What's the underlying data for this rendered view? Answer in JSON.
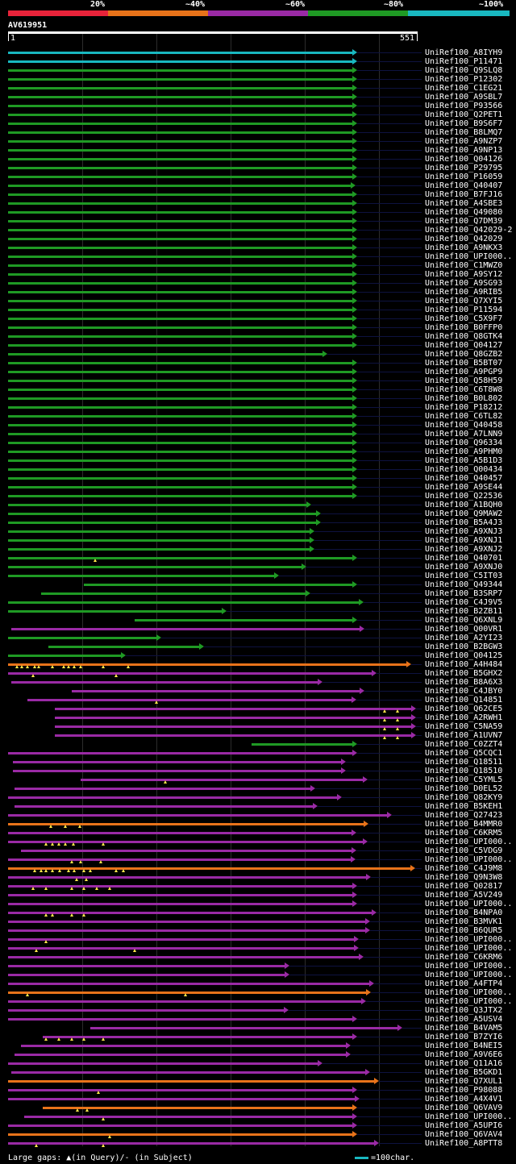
{
  "legend": {
    "labels": [
      "20%",
      "~40%",
      "~60%",
      "~80%",
      "~100%"
    ],
    "colors": [
      "#e8233a",
      "#e8731a",
      "#9a2aa5",
      "#1f9a24",
      "#19b8c0"
    ]
  },
  "query": {
    "id": "AV619951",
    "start": "1",
    "end": "551",
    "length": 551
  },
  "footer": {
    "gaps_text": "Large gaps: ▲(in Query)/- (in Subject)",
    "scale_text": "=100char."
  },
  "hits": [
    {
      "label": "UniRef100_A8IYH9",
      "color": "#19b8c0",
      "start": 0,
      "end": 551,
      "gaps": []
    },
    {
      "label": "UniRef100_P11471",
      "color": "#19b8c0",
      "start": 0,
      "end": 551,
      "gaps": []
    },
    {
      "label": "UniRef100_Q9SLQ8",
      "color": "#1f9a24",
      "start": 0,
      "end": 551,
      "gaps": []
    },
    {
      "label": "UniRef100_P12302",
      "color": "#1f9a24",
      "start": 0,
      "end": 551,
      "gaps": []
    },
    {
      "label": "UniRef100_C1EG21",
      "color": "#1f9a24",
      "start": 0,
      "end": 551,
      "gaps": []
    },
    {
      "label": "UniRef100_A9SBL7",
      "color": "#1f9a24",
      "start": 0,
      "end": 551,
      "gaps": []
    },
    {
      "label": "UniRef100_P93566",
      "color": "#1f9a24",
      "start": 0,
      "end": 551,
      "gaps": []
    },
    {
      "label": "UniRef100_Q2PET1",
      "color": "#1f9a24",
      "start": 0,
      "end": 551,
      "gaps": []
    },
    {
      "label": "UniRef100_B9S6F7",
      "color": "#1f9a24",
      "start": 0,
      "end": 551,
      "gaps": []
    },
    {
      "label": "UniRef100_B8LMQ7",
      "color": "#1f9a24",
      "start": 0,
      "end": 551,
      "gaps": []
    },
    {
      "label": "UniRef100_A9NZP7",
      "color": "#1f9a24",
      "start": 0,
      "end": 551,
      "gaps": []
    },
    {
      "label": "UniRef100_A9NP13",
      "color": "#1f9a24",
      "start": 0,
      "end": 551,
      "gaps": []
    },
    {
      "label": "UniRef100_Q04126",
      "color": "#1f9a24",
      "start": 0,
      "end": 551,
      "gaps": []
    },
    {
      "label": "UniRef100_P29795",
      "color": "#1f9a24",
      "start": 0,
      "end": 551,
      "gaps": []
    },
    {
      "label": "UniRef100_P16059",
      "color": "#1f9a24",
      "start": 0,
      "end": 551,
      "gaps": []
    },
    {
      "label": "UniRef100_Q40407",
      "color": "#1f9a24",
      "start": 0,
      "end": 548,
      "gaps": []
    },
    {
      "label": "UniRef100_B7FJ16",
      "color": "#1f9a24",
      "start": 0,
      "end": 551,
      "gaps": []
    },
    {
      "label": "UniRef100_A4SBE3",
      "color": "#1f9a24",
      "start": 0,
      "end": 551,
      "gaps": []
    },
    {
      "label": "UniRef100_Q49080",
      "color": "#1f9a24",
      "start": 0,
      "end": 551,
      "gaps": []
    },
    {
      "label": "UniRef100_Q7DM39",
      "color": "#1f9a24",
      "start": 0,
      "end": 551,
      "gaps": []
    },
    {
      "label": "UniRef100_Q42029-2",
      "color": "#1f9a24",
      "start": 0,
      "end": 551,
      "gaps": []
    },
    {
      "label": "UniRef100_Q42029",
      "color": "#1f9a24",
      "start": 0,
      "end": 551,
      "gaps": []
    },
    {
      "label": "UniRef100_A9NKX3",
      "color": "#1f9a24",
      "start": 0,
      "end": 551,
      "gaps": []
    },
    {
      "label": "UniRef100_UPI000..",
      "color": "#1f9a24",
      "start": 0,
      "end": 551,
      "gaps": []
    },
    {
      "label": "UniRef100_C1MWZ0",
      "color": "#1f9a24",
      "start": 0,
      "end": 551,
      "gaps": []
    },
    {
      "label": "UniRef100_A9SY12",
      "color": "#1f9a24",
      "start": 0,
      "end": 551,
      "gaps": []
    },
    {
      "label": "UniRef100_A9SG93",
      "color": "#1f9a24",
      "start": 0,
      "end": 551,
      "gaps": []
    },
    {
      "label": "UniRef100_A9RIB5",
      "color": "#1f9a24",
      "start": 0,
      "end": 551,
      "gaps": []
    },
    {
      "label": "UniRef100_Q7XYI5",
      "color": "#1f9a24",
      "start": 0,
      "end": 551,
      "gaps": []
    },
    {
      "label": "UniRef100_P11594",
      "color": "#1f9a24",
      "start": 0,
      "end": 551,
      "gaps": []
    },
    {
      "label": "UniRef100_C5X9F7",
      "color": "#1f9a24",
      "start": 0,
      "end": 551,
      "gaps": []
    },
    {
      "label": "UniRef100_B0FFP0",
      "color": "#1f9a24",
      "start": 0,
      "end": 551,
      "gaps": []
    },
    {
      "label": "UniRef100_Q8GTK4",
      "color": "#1f9a24",
      "start": 0,
      "end": 551,
      "gaps": []
    },
    {
      "label": "UniRef100_Q04127",
      "color": "#1f9a24",
      "start": 0,
      "end": 551,
      "gaps": []
    },
    {
      "label": "UniRef100_Q8GZB2",
      "color": "#1f9a24",
      "start": 0,
      "end": 504,
      "gaps": []
    },
    {
      "label": "UniRef100_B5BT07",
      "color": "#1f9a24",
      "start": 0,
      "end": 551,
      "gaps": []
    },
    {
      "label": "UniRef100_A9PGP9",
      "color": "#1f9a24",
      "start": 0,
      "end": 551,
      "gaps": []
    },
    {
      "label": "UniRef100_Q58H59",
      "color": "#1f9a24",
      "start": 0,
      "end": 551,
      "gaps": []
    },
    {
      "label": "UniRef100_C6T8W8",
      "color": "#1f9a24",
      "start": 0,
      "end": 551,
      "gaps": []
    },
    {
      "label": "UniRef100_B0L802",
      "color": "#1f9a24",
      "start": 0,
      "end": 551,
      "gaps": []
    },
    {
      "label": "UniRef100_P18212",
      "color": "#1f9a24",
      "start": 0,
      "end": 551,
      "gaps": []
    },
    {
      "label": "UniRef100_C6TL82",
      "color": "#1f9a24",
      "start": 0,
      "end": 551,
      "gaps": []
    },
    {
      "label": "UniRef100_Q40458",
      "color": "#1f9a24",
      "start": 0,
      "end": 551,
      "gaps": []
    },
    {
      "label": "UniRef100_A7LNN9",
      "color": "#1f9a24",
      "start": 0,
      "end": 551,
      "gaps": []
    },
    {
      "label": "UniRef100_Q96334",
      "color": "#1f9a24",
      "start": 0,
      "end": 551,
      "gaps": []
    },
    {
      "label": "UniRef100_A9PHM0",
      "color": "#1f9a24",
      "start": 0,
      "end": 551,
      "gaps": []
    },
    {
      "label": "UniRef100_A5B1D3",
      "color": "#1f9a24",
      "start": 0,
      "end": 551,
      "gaps": []
    },
    {
      "label": "UniRef100_Q00434",
      "color": "#1f9a24",
      "start": 0,
      "end": 551,
      "gaps": []
    },
    {
      "label": "UniRef100_Q40457",
      "color": "#1f9a24",
      "start": 0,
      "end": 551,
      "gaps": []
    },
    {
      "label": "UniRef100_A9SE44",
      "color": "#1f9a24",
      "start": 0,
      "end": 551,
      "gaps": []
    },
    {
      "label": "UniRef100_Q22536",
      "color": "#1f9a24",
      "start": 0,
      "end": 551,
      "gaps": []
    },
    {
      "label": "UniRef100_A1BQH0",
      "color": "#1f9a24",
      "start": 0,
      "end": 479,
      "gaps": []
    },
    {
      "label": "UniRef100_Q9MAW2",
      "color": "#1f9a24",
      "start": 0,
      "end": 494,
      "gaps": []
    },
    {
      "label": "UniRef100_B5A4J3",
      "color": "#1f9a24",
      "start": 0,
      "end": 494,
      "gaps": []
    },
    {
      "label": "UniRef100_A9XNJ3",
      "color": "#1f9a24",
      "start": 0,
      "end": 484,
      "gaps": []
    },
    {
      "label": "UniRef100_A9XNJ1",
      "color": "#1f9a24",
      "start": 0,
      "end": 484,
      "gaps": []
    },
    {
      "label": "UniRef100_A9XNJ2",
      "color": "#1f9a24",
      "start": 0,
      "end": 484,
      "gaps": []
    },
    {
      "label": "UniRef100_Q40701",
      "color": "#1f9a24",
      "start": 0,
      "end": 551,
      "gaps": [
        138
      ]
    },
    {
      "label": "UniRef100_A9XNJ0",
      "color": "#1f9a24",
      "start": 0,
      "end": 471,
      "gaps": []
    },
    {
      "label": "UniRef100_C5IT03",
      "color": "#1f9a24",
      "start": 0,
      "end": 428,
      "gaps": []
    },
    {
      "label": "UniRef100_Q49344",
      "color": "#1f9a24",
      "start": 120,
      "end": 551,
      "gaps": []
    },
    {
      "label": "UniRef100_B3SRP7",
      "color": "#1f9a24",
      "start": 52,
      "end": 477,
      "gaps": []
    },
    {
      "label": "UniRef100_C4J9V5",
      "color": "#1f9a24",
      "start": 0,
      "end": 561,
      "gaps": []
    },
    {
      "label": "UniRef100_B2ZB11",
      "color": "#1f9a24",
      "start": 0,
      "end": 345,
      "gaps": []
    },
    {
      "label": "UniRef100_Q6XNL9",
      "color": "#1f9a24",
      "start": 200,
      "end": 551,
      "gaps": []
    },
    {
      "label": "UniRef100_Q00VR1",
      "color": "#9a2aa5",
      "start": 5,
      "end": 562,
      "gaps": []
    },
    {
      "label": "UniRef100_A2YI23",
      "color": "#1f9a24",
      "start": 0,
      "end": 242,
      "gaps": []
    },
    {
      "label": "UniRef100_B2BGW3",
      "color": "#1f9a24",
      "start": 63,
      "end": 309,
      "gaps": []
    },
    {
      "label": "UniRef100_Q04125",
      "color": "#1f9a24",
      "start": 0,
      "end": 186,
      "gaps": []
    },
    {
      "label": "UniRef100_A4H484",
      "color": "#e8731a",
      "start": 0,
      "end": 636,
      "gaps": [
        14,
        22,
        30,
        42,
        48,
        70,
        88,
        95,
        104,
        115,
        150,
        190
      ]
    },
    {
      "label": "UniRef100_B5GHX2",
      "color": "#9a2aa5",
      "start": 0,
      "end": 582,
      "gaps": [
        40,
        170
      ]
    },
    {
      "label": "UniRef100_B8A6X3",
      "color": "#9a2aa5",
      "start": 5,
      "end": 496,
      "gaps": []
    },
    {
      "label": "UniRef100_C4JBY0",
      "color": "#9a2aa5",
      "start": 100,
      "end": 562,
      "gaps": []
    },
    {
      "label": "UniRef100_Q14851",
      "color": "#9a2aa5",
      "start": 30,
      "end": 550,
      "gaps": [
        234
      ]
    },
    {
      "label": "UniRef100_Q62CE5",
      "color": "#9a2aa5",
      "start": 74,
      "end": 644,
      "gaps": [
        594,
        614
      ]
    },
    {
      "label": "UniRef100_A2RWH1",
      "color": "#9a2aa5",
      "start": 74,
      "end": 644,
      "gaps": [
        594,
        614
      ]
    },
    {
      "label": "UniRef100_C5NA59",
      "color": "#9a2aa5",
      "start": 74,
      "end": 644,
      "gaps": [
        594,
        614
      ]
    },
    {
      "label": "UniRef100_A1UVN7",
      "color": "#9a2aa5",
      "start": 74,
      "end": 644,
      "gaps": [
        594,
        614
      ]
    },
    {
      "label": "UniRef100_C0ZZT4",
      "color": "#1f9a24",
      "start": 384,
      "end": 551,
      "gaps": []
    },
    {
      "label": "UniRef100_Q5CQC1",
      "color": "#9a2aa5",
      "start": 0,
      "end": 551,
      "gaps": []
    },
    {
      "label": "UniRef100_Q18511",
      "color": "#9a2aa5",
      "start": 7,
      "end": 533,
      "gaps": []
    },
    {
      "label": "UniRef100_Q18510",
      "color": "#9a2aa5",
      "start": 7,
      "end": 533,
      "gaps": []
    },
    {
      "label": "UniRef100_C5YML5",
      "color": "#9a2aa5",
      "start": 115,
      "end": 567,
      "gaps": [
        248
      ]
    },
    {
      "label": "UniRef100_D0EL52",
      "color": "#9a2aa5",
      "start": 10,
      "end": 485,
      "gaps": []
    },
    {
      "label": "UniRef100_Q82KY9",
      "color": "#9a2aa5",
      "start": 0,
      "end": 527,
      "gaps": []
    },
    {
      "label": "UniRef100_B5KEH1",
      "color": "#9a2aa5",
      "start": 10,
      "end": 489,
      "gaps": []
    },
    {
      "label": "UniRef100_Q27423",
      "color": "#9a2aa5",
      "start": 0,
      "end": 606,
      "gaps": []
    },
    {
      "label": "UniRef100_B4MMR0",
      "color": "#e8731a",
      "start": 0,
      "end": 569,
      "gaps": [
        67,
        90,
        113
      ]
    },
    {
      "label": "UniRef100_C6KRM5",
      "color": "#9a2aa5",
      "start": 0,
      "end": 549,
      "gaps": []
    },
    {
      "label": "UniRef100_UPI000..",
      "color": "#9a2aa5",
      "start": 0,
      "end": 567,
      "gaps": [
        60,
        70,
        80,
        90,
        103,
        150
      ]
    },
    {
      "label": "UniRef100_C5VDG9",
      "color": "#9a2aa5",
      "start": 20,
      "end": 550,
      "gaps": []
    },
    {
      "label": "UniRef100_UPI000..",
      "color": "#9a2aa5",
      "start": 0,
      "end": 548,
      "gaps": [
        100,
        114,
        146
      ]
    },
    {
      "label": "UniRef100_C4J9M8",
      "color": "#e8731a",
      "start": 0,
      "end": 642,
      "gaps": [
        42,
        52,
        60,
        70,
        82,
        96,
        104,
        120,
        130,
        170,
        182
      ]
    },
    {
      "label": "UniRef100_Q9N3W8",
      "color": "#9a2aa5",
      "start": 0,
      "end": 572,
      "gaps": [
        108,
        124
      ]
    },
    {
      "label": "UniRef100_Q02817",
      "color": "#9a2aa5",
      "start": 0,
      "end": 551,
      "gaps": [
        40,
        60,
        100,
        120,
        140,
        160
      ]
    },
    {
      "label": "UniRef100_A5V249",
      "color": "#9a2aa5",
      "start": 0,
      "end": 551,
      "gaps": []
    },
    {
      "label": "UniRef100_UPI000..",
      "color": "#9a2aa5",
      "start": 0,
      "end": 551,
      "gaps": []
    },
    {
      "label": "UniRef100_B4NPA0",
      "color": "#9a2aa5",
      "start": 0,
      "end": 582,
      "gaps": [
        60,
        70,
        100,
        120
      ]
    },
    {
      "label": "UniRef100_B3MVK1",
      "color": "#9a2aa5",
      "start": 0,
      "end": 571,
      "gaps": []
    },
    {
      "label": "UniRef100_B6QUR5",
      "color": "#9a2aa5",
      "start": 0,
      "end": 571,
      "gaps": []
    },
    {
      "label": "UniRef100_UPI000..",
      "color": "#9a2aa5",
      "start": 0,
      "end": 553,
      "gaps": [
        60
      ]
    },
    {
      "label": "UniRef100_UPI000..",
      "color": "#9a2aa5",
      "start": 0,
      "end": 553,
      "gaps": [
        45,
        200
      ]
    },
    {
      "label": "UniRef100_C6KRM6",
      "color": "#9a2aa5",
      "start": 0,
      "end": 561,
      "gaps": []
    },
    {
      "label": "UniRef100_UPI000..",
      "color": "#9a2aa5",
      "start": 0,
      "end": 444,
      "gaps": []
    },
    {
      "label": "UniRef100_UPI000..",
      "color": "#9a2aa5",
      "start": 0,
      "end": 444,
      "gaps": []
    },
    {
      "label": "UniRef100_A4FTP4",
      "color": "#9a2aa5",
      "start": 0,
      "end": 577,
      "gaps": []
    },
    {
      "label": "UniRef100_UPI000..",
      "color": "#e8731a",
      "start": 0,
      "end": 573,
      "gaps": [
        30,
        280
      ]
    },
    {
      "label": "UniRef100_UPI000..",
      "color": "#9a2aa5",
      "start": 0,
      "end": 565,
      "gaps": []
    },
    {
      "label": "UniRef100_Q3JTX2",
      "color": "#9a2aa5",
      "start": 0,
      "end": 443,
      "gaps": []
    },
    {
      "label": "UniRef100_A5USV4",
      "color": "#9a2aa5",
      "start": 0,
      "end": 551,
      "gaps": []
    },
    {
      "label": "UniRef100_B4VAM5",
      "color": "#9a2aa5",
      "start": 130,
      "end": 622,
      "gaps": []
    },
    {
      "label": "UniRef100_B7ZYI6",
      "color": "#9a2aa5",
      "start": 55,
      "end": 551,
      "gaps": [
        60,
        80,
        100,
        120,
        150
      ]
    },
    {
      "label": "UniRef100_B4NEI5",
      "color": "#9a2aa5",
      "start": 20,
      "end": 541,
      "gaps": []
    },
    {
      "label": "UniRef100_A9V6E6",
      "color": "#9a2aa5",
      "start": 10,
      "end": 541,
      "gaps": []
    },
    {
      "label": "UniRef100_Q11A16",
      "color": "#9a2aa5",
      "start": 0,
      "end": 496,
      "gaps": []
    },
    {
      "label": "UniRef100_B5GKD1",
      "color": "#9a2aa5",
      "start": 5,
      "end": 571,
      "gaps": []
    },
    {
      "label": "UniRef100_Q7XUL1",
      "color": "#e8731a",
      "start": 0,
      "end": 585,
      "gaps": []
    },
    {
      "label": "UniRef100_P98088",
      "color": "#9a2aa5",
      "start": 0,
      "end": 551,
      "gaps": [
        142
      ]
    },
    {
      "label": "UniRef100_A4X4V1",
      "color": "#9a2aa5",
      "start": 0,
      "end": 555,
      "gaps": []
    },
    {
      "label": "UniRef100_Q6VAV9",
      "color": "#e8731a",
      "start": 55,
      "end": 551,
      "gaps": [
        110,
        125
      ]
    },
    {
      "label": "UniRef100_UPI000..",
      "color": "#9a2aa5",
      "start": 25,
      "end": 551,
      "gaps": [
        150
      ]
    },
    {
      "label": "UniRef100_A5UPI6",
      "color": "#9a2aa5",
      "start": 0,
      "end": 551,
      "gaps": []
    },
    {
      "label": "UniRef100_Q6VAV4",
      "color": "#e8731a",
      "start": 0,
      "end": 551,
      "gaps": [
        160
      ]
    },
    {
      "label": "UniRef100_A8PTT8",
      "color": "#9a2aa5",
      "start": 0,
      "end": 585,
      "gaps": [
        45,
        150
      ]
    }
  ]
}
